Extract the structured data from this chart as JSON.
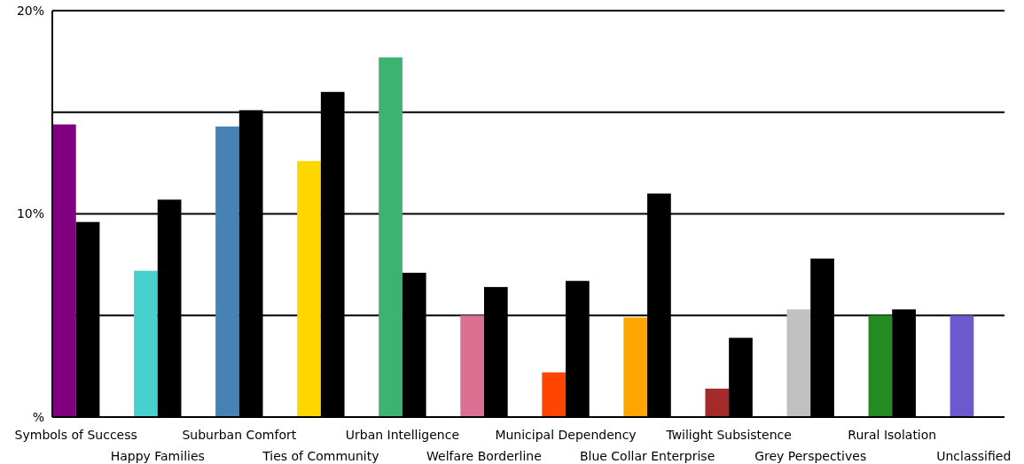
{
  "chart_data": {
    "type": "bar",
    "categories": [
      "Symbols of Success",
      "Happy Families",
      "Suburban Comfort",
      "Ties of Community",
      "Urban Intelligence",
      "Welfare Borderline",
      "Municipal Dependency",
      "Blue Collar Enterprise",
      "Twilight Subsistence",
      "Grey Perspectives",
      "Rural Isolation",
      "Unclassified"
    ],
    "series": [
      {
        "colors": [
          "#800080",
          "#48d1cc",
          "#4682b4",
          "#ffd700",
          "#3cb371",
          "#db7093",
          "#ff4500",
          "#ffa500",
          "#a52a2a",
          "#c0c0c0",
          "#228b22",
          "#6a5acd"
        ],
        "values": [
          14.4,
          7.2,
          14.3,
          12.6,
          17.7,
          5.0,
          2.2,
          4.9,
          1.4,
          5.3,
          5.0,
          5.0
        ]
      },
      {
        "color": "#000000",
        "values": [
          9.6,
          10.7,
          15.1,
          16.0,
          7.1,
          6.4,
          6.7,
          11.0,
          3.9,
          7.8,
          5.3,
          null
        ]
      }
    ],
    "ylim": [
      0,
      20
    ],
    "yticks": [
      {
        "value": 0,
        "label": "%"
      },
      {
        "value": 5,
        "label": null
      },
      {
        "value": 10,
        "label": "10%"
      },
      {
        "value": 15,
        "label": null
      },
      {
        "value": 20,
        "label": "20%"
      }
    ],
    "grid": "y"
  }
}
